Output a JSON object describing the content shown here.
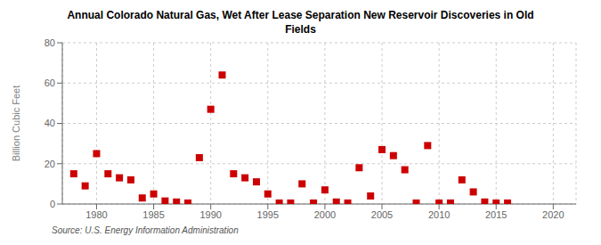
{
  "chart_data": {
    "type": "scatter",
    "title": "Annual Colorado Natural Gas, Wet After Lease Separation New Reservoir Discoveries in Old\nFields",
    "ylabel": "Billion Cubic Feet",
    "annotations": [
      "Source: U.S. Energy Information Administration"
    ],
    "x": [
      1978,
      1979,
      1980,
      1981,
      1982,
      1983,
      1984,
      1985,
      1986,
      1987,
      1988,
      1989,
      1990,
      1991,
      1992,
      1993,
      1994,
      1995,
      1996,
      1997,
      1998,
      1999,
      2000,
      2001,
      2002,
      2003,
      2004,
      2005,
      2006,
      2007,
      2008,
      2009,
      2010,
      2011,
      2012,
      2013,
      2014,
      2015,
      2016
    ],
    "values": [
      15,
      9,
      25,
      15,
      13,
      12,
      3,
      5,
      1.5,
      1.0,
      0.5,
      23,
      47,
      64,
      15,
      13,
      11,
      5,
      0.5,
      0.5,
      10,
      0.5,
      7,
      1,
      0.5,
      18,
      4,
      27,
      24,
      17,
      0.5,
      29,
      0.5,
      0.5,
      12,
      6,
      1,
      0.5,
      0.5
    ],
    "color": "#cc0000",
    "marker": "square",
    "xlim": [
      1977,
      2022
    ],
    "xticks": [
      1980,
      1985,
      1990,
      1995,
      2000,
      2005,
      2010,
      2015,
      2020
    ],
    "ylim": [
      0,
      80
    ],
    "yticks": [
      0,
      20,
      40,
      60,
      80
    ],
    "grid": true
  }
}
